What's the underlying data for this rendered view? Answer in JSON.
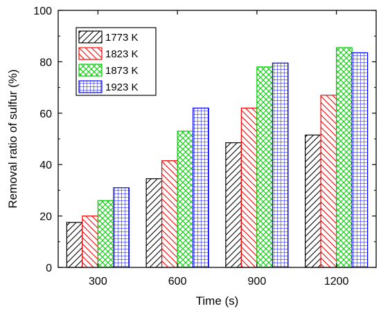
{
  "chart_data": {
    "type": "bar",
    "title": "",
    "xlabel": "Time (s)",
    "ylabel": "Removal ratio of sulfur (%)",
    "categories": [
      "300",
      "600",
      "900",
      "1200"
    ],
    "ylim": [
      0,
      100
    ],
    "yticks": [
      "0",
      "20",
      "40",
      "60",
      "80",
      "100"
    ],
    "grid": false,
    "legend_position": "top-left",
    "series": [
      {
        "name": "1773 K",
        "values": [
          17.5,
          34.5,
          48.5,
          51.5
        ],
        "color": "#000000",
        "pattern": "diagonal-up"
      },
      {
        "name": "1823 K",
        "values": [
          20.0,
          41.5,
          62.0,
          67.0
        ],
        "color": "#ff0000",
        "pattern": "diagonal-down"
      },
      {
        "name": "1873 K",
        "values": [
          26.0,
          53.0,
          78.0,
          85.5
        ],
        "color": "#00cc00",
        "pattern": "crosshatch"
      },
      {
        "name": "1923 K",
        "values": [
          31.0,
          62.0,
          79.5,
          83.5
        ],
        "color": "#0000ff",
        "pattern": "grid"
      }
    ]
  }
}
